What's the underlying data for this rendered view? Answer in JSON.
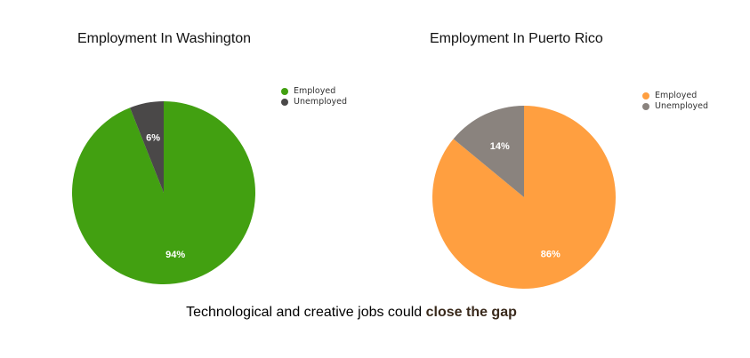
{
  "chart_data": [
    {
      "type": "pie",
      "title": "Employment In Washington",
      "categories": [
        "Employed",
        "Unemployed"
      ],
      "values": [
        94,
        6
      ],
      "labels": [
        "94%",
        "6%"
      ],
      "colors": [
        "#42a011",
        "#4a4848"
      ],
      "legend": "top-right"
    },
    {
      "type": "pie",
      "title": "Employment In Puerto Rico",
      "categories": [
        "Employed",
        "Unemployed"
      ],
      "values": [
        86,
        14
      ],
      "labels": [
        "86%",
        "14%"
      ],
      "colors": [
        "#ff9f40",
        "#8a837e"
      ],
      "legend": "top-right"
    }
  ],
  "caption": {
    "lead": "Technological and creative jobs could ",
    "emphasis": "close the gap"
  }
}
